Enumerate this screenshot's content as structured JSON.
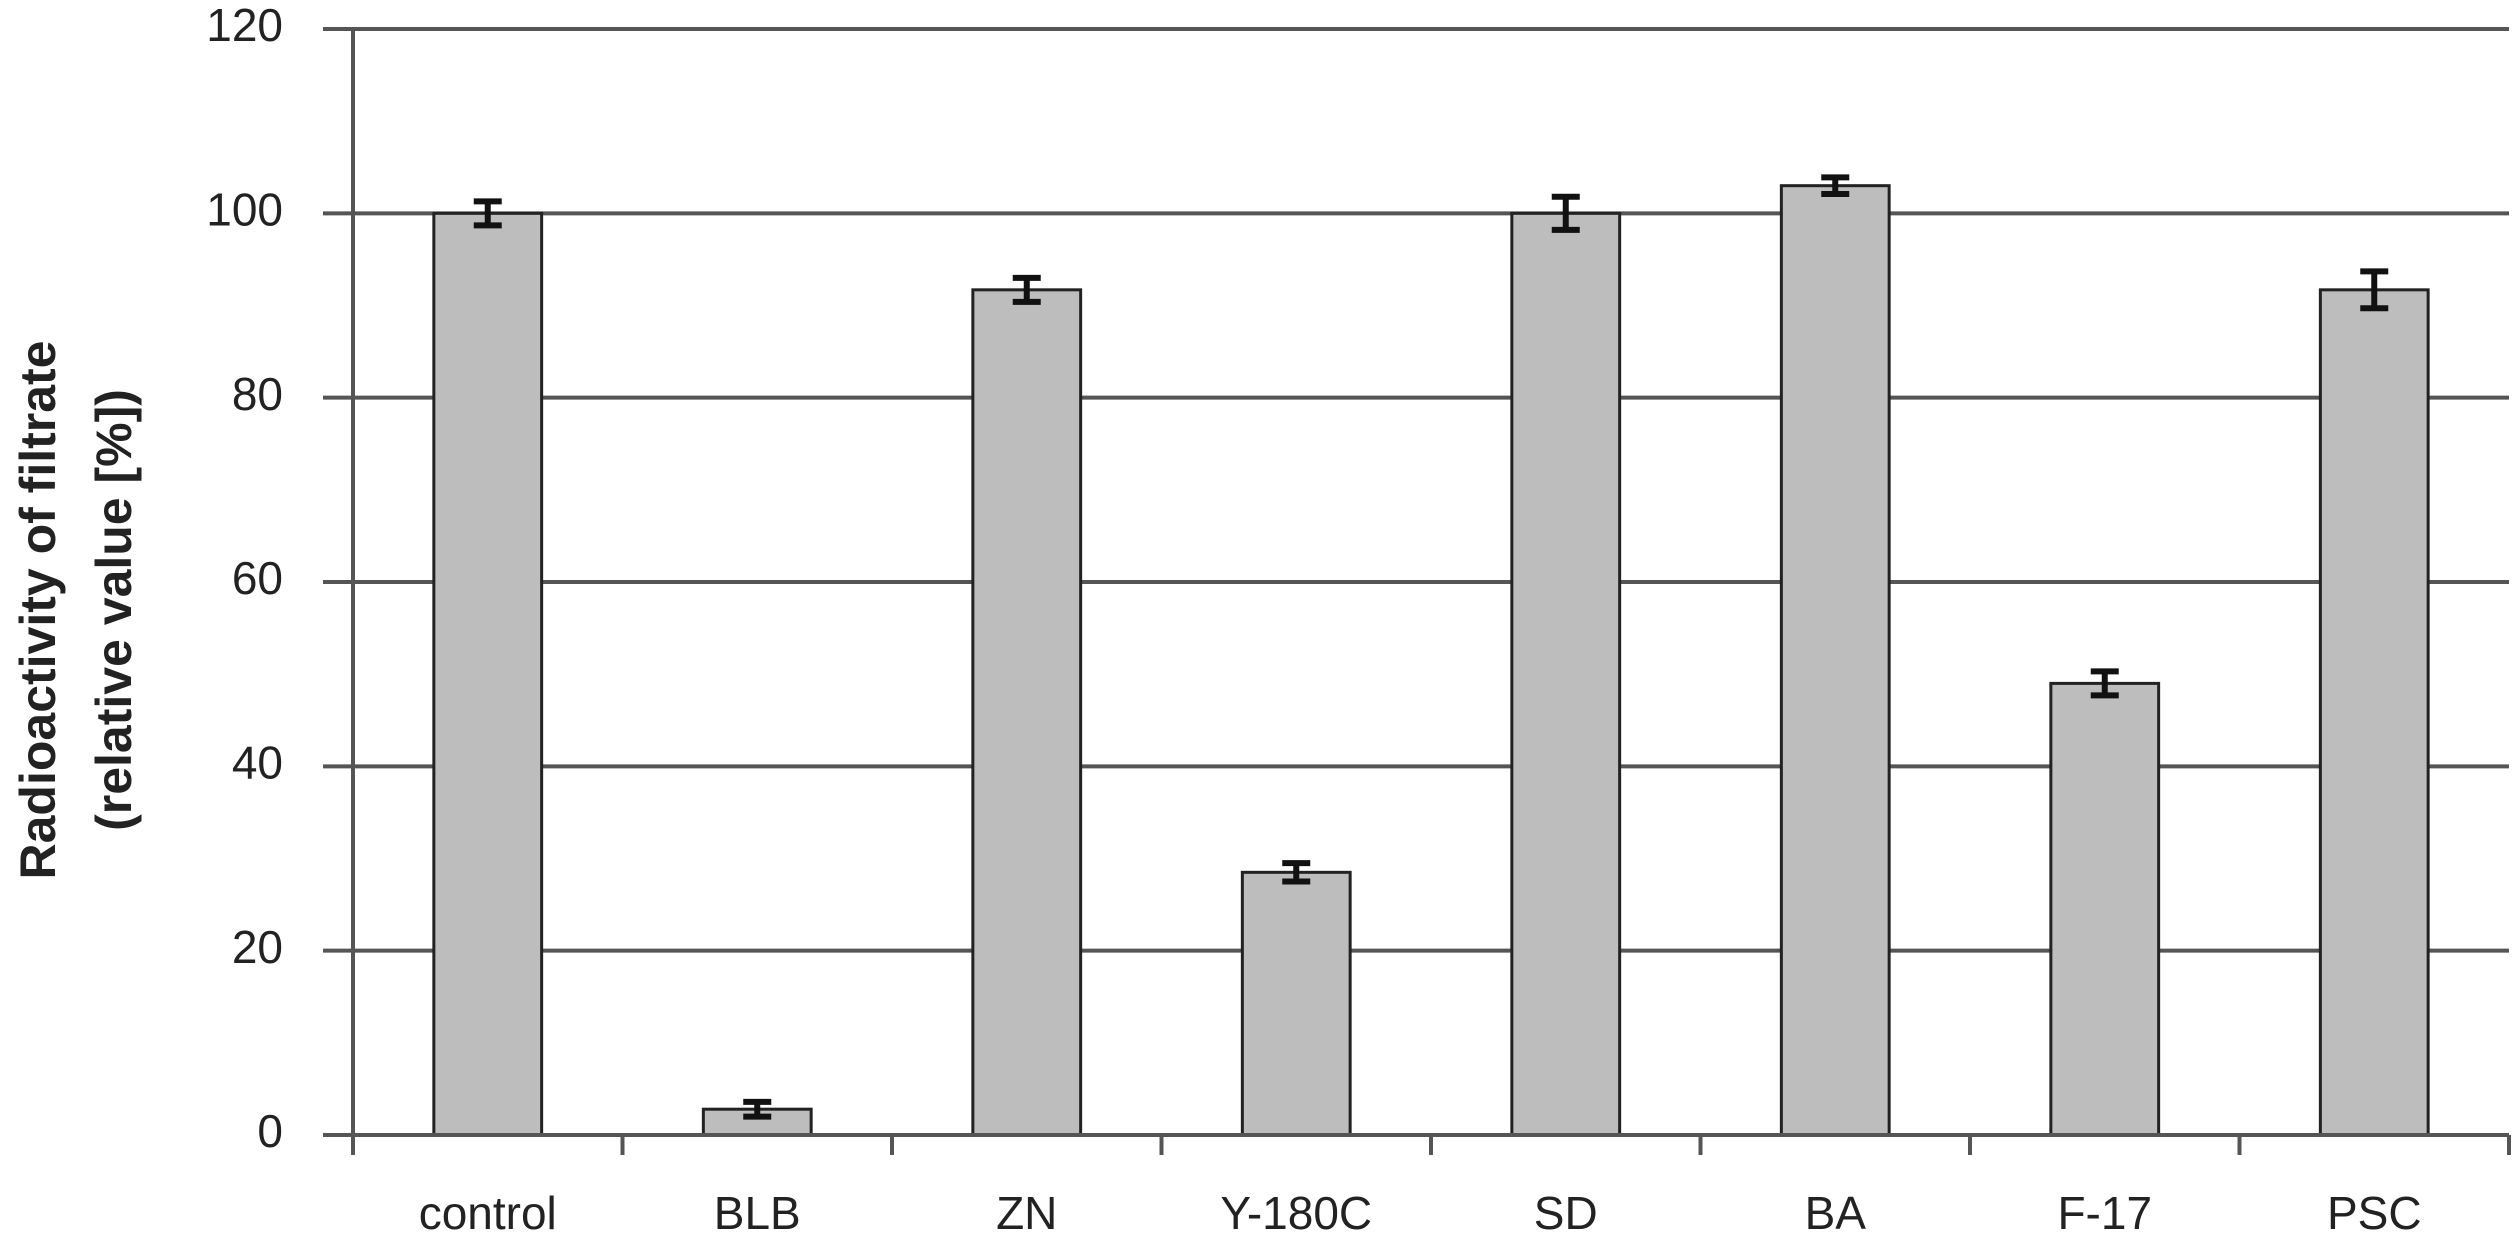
{
  "chart_data": {
    "type": "bar",
    "ylabel": [
      "Radioactivity of filtrate",
      "(relative value [%])"
    ],
    "categories": [
      "control",
      "BLB",
      "ZN",
      "Y-180C",
      "SD",
      "BA",
      "F-17",
      "PSC"
    ],
    "values": [
      100,
      2.8,
      91.7,
      28.5,
      100,
      103,
      49,
      91.7
    ],
    "errors": [
      1.3,
      0.8,
      1.3,
      1,
      1.8,
      0.9,
      1.3,
      2
    ],
    "color": "#bdbdbd",
    "ylim": [
      0,
      120
    ],
    "yticks": [
      0,
      20,
      40,
      60,
      80,
      100,
      120
    ],
    "grid": true
  }
}
